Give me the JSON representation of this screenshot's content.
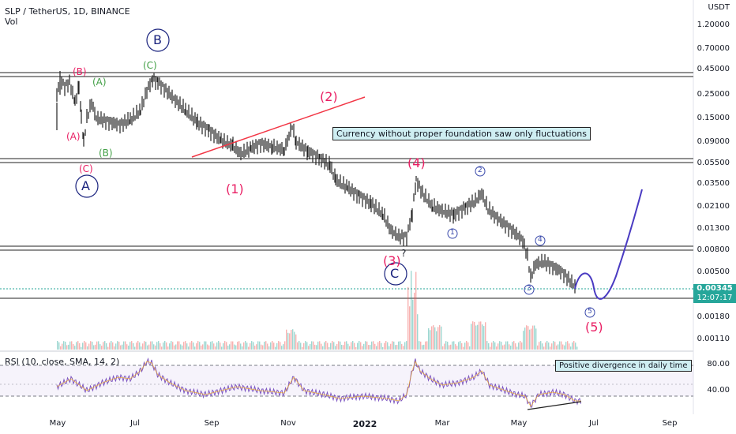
{
  "header": {
    "symbol_line": "SLP / TetherUS, 1D, BINANCE",
    "volume_label": "Vol",
    "currency": "USDT"
  },
  "price_axis": {
    "labels": [
      "1.20000",
      "0.70000",
      "0.45000",
      "0.25000",
      "0.15000",
      "0.09000",
      "0.05500",
      "0.03500",
      "0.02100",
      "0.01300",
      "0.00800",
      "0.00500",
      "0.00180",
      "0.00110"
    ],
    "current_price": "0.00345",
    "countdown": "12:07:17"
  },
  "rsi_panel": {
    "title": "RSI (10, close, SMA, 14, 2)",
    "labels": [
      "80.00",
      "40.00"
    ]
  },
  "time_axis": {
    "labels": [
      "May",
      "Jul",
      "Sep",
      "Nov",
      "2022",
      "Mar",
      "May",
      "Jul",
      "Sep"
    ]
  },
  "annotations": {
    "note_main": "Currency without proper foundation saw only fluctuations",
    "note_rsi": "Positive divergence in daily time",
    "wave_labels": {
      "A": "A",
      "B": "B",
      "C": "C",
      "B_red": "(B)",
      "A_red": "(A)",
      "C_red": "(C)",
      "A_green": "(A)",
      "B_green": "(B)",
      "C_green": "(C)",
      "w1": "(1)",
      "w2": "(2)",
      "w3": "(3)",
      "w4": "(4)",
      "w5": "(5)",
      "question": "?",
      "c1": "1",
      "c2": "2",
      "c3": "3",
      "c4": "4",
      "c5": "5"
    }
  },
  "colors": {
    "wave_red": "#e91e63",
    "trendline": "#f23645",
    "projection": "#4a3bc2",
    "circle_blue": "#1a237e",
    "green": "#43a047",
    "price_badge": "#26a69a",
    "rsi_line": "#7e57c2"
  }
}
